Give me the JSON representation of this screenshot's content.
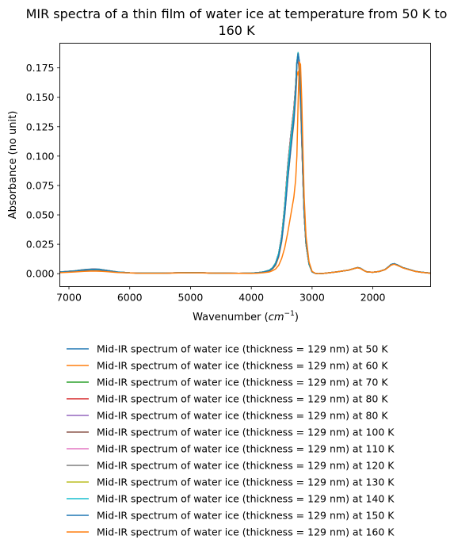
{
  "chart_data": {
    "type": "line",
    "title_lines": [
      "MIR spectra of a thin film of water ice at temperature from 50 K to",
      "160 K"
    ],
    "xlabel_text": "Wavenumber (",
    "xlabel_math_base": "cm",
    "xlabel_math_exp": "−1",
    "xlabel_close": ")",
    "ylabel": "Absorbance (no unit)",
    "xlim": [
      7150,
      1050
    ],
    "ylim": [
      -0.011,
      0.196
    ],
    "x_reversed": true,
    "xticks": [
      7000,
      6000,
      5000,
      4000,
      3000,
      2000
    ],
    "xtick_labels": [
      "7000",
      "6000",
      "5000",
      "4000",
      "3000",
      "2000"
    ],
    "yticks": [
      0.0,
      0.025,
      0.05,
      0.075,
      0.1,
      0.125,
      0.15,
      0.175
    ],
    "ytick_labels": [
      "0.000",
      "0.025",
      "0.050",
      "0.075",
      "0.100",
      "0.125",
      "0.150",
      "0.175"
    ],
    "grid": false,
    "legend_location": "below plot",
    "x": [
      7150,
      6900,
      6750,
      6600,
      6500,
      6400,
      6200,
      6000,
      5800,
      5500,
      5200,
      5000,
      4800,
      4600,
      4400,
      4200,
      4000,
      3900,
      3800,
      3700,
      3650,
      3600,
      3550,
      3500,
      3450,
      3400,
      3350,
      3300,
      3270,
      3250,
      3230,
      3210,
      3190,
      3170,
      3150,
      3130,
      3100,
      3050,
      3000,
      2950,
      2900,
      2800,
      2600,
      2400,
      2300,
      2250,
      2200,
      2150,
      2100,
      2000,
      1900,
      1800,
      1750,
      1700,
      1650,
      1600,
      1500,
      1400,
      1300,
      1200,
      1100,
      1050
    ],
    "series": [
      {
        "name": "Mid-IR spectrum of water ice (thickness = 129 nm) at 50 K",
        "color": "#1f77b4",
        "values": [
          0.0015,
          0.0025,
          0.0035,
          0.004,
          0.0038,
          0.003,
          0.0015,
          0.0007,
          0.0005,
          0.0005,
          0.0007,
          0.0008,
          0.0007,
          0.0005,
          0.0004,
          0.0003,
          0.0005,
          0.0008,
          0.0015,
          0.003,
          0.005,
          0.009,
          0.017,
          0.032,
          0.058,
          0.092,
          0.118,
          0.14,
          0.16,
          0.178,
          0.182,
          0.172,
          0.148,
          0.115,
          0.08,
          0.05,
          0.025,
          0.008,
          0.0015,
          0.0003,
          0.0,
          0.0003,
          0.0015,
          0.003,
          0.0045,
          0.0052,
          0.0045,
          0.0028,
          0.0015,
          0.0012,
          0.0018,
          0.0035,
          0.0055,
          0.0078,
          0.0085,
          0.0075,
          0.005,
          0.0035,
          0.002,
          0.0012,
          0.0007,
          0.0004
        ]
      },
      {
        "name": "Mid-IR spectrum of water ice (thickness = 129 nm) at 60 K",
        "color": "#ff7f0e",
        "values": [
          0.001,
          0.002,
          0.0028,
          0.0032,
          0.003,
          0.0025,
          0.0012,
          0.0006,
          0.0004,
          0.0004,
          0.0006,
          0.0007,
          0.0006,
          0.0005,
          0.0004,
          0.0003,
          0.0004,
          0.0007,
          0.0012,
          0.0024,
          0.004,
          0.007,
          0.014,
          0.027,
          0.05,
          0.08,
          0.105,
          0.128,
          0.15,
          0.168,
          0.172,
          0.165,
          0.142,
          0.112,
          0.08,
          0.05,
          0.025,
          0.008,
          0.0015,
          0.0003,
          0.0,
          0.0003,
          0.0015,
          0.003,
          0.0045,
          0.005,
          0.0043,
          0.0027,
          0.0015,
          0.0012,
          0.0018,
          0.0034,
          0.0053,
          0.0075,
          0.0082,
          0.0072,
          0.0048,
          0.0033,
          0.0019,
          0.0011,
          0.0006,
          0.0003
        ]
      },
      {
        "name": "Mid-IR spectrum of water ice (thickness = 129 nm) at 70 K",
        "color": "#2ca02c",
        "values": [
          0.0014,
          0.0024,
          0.0033,
          0.0038,
          0.0036,
          0.0029,
          0.0014,
          0.0007,
          0.0005,
          0.0005,
          0.0007,
          0.0008,
          0.0007,
          0.0005,
          0.0004,
          0.0003,
          0.0005,
          0.0008,
          0.0015,
          0.003,
          0.005,
          0.009,
          0.017,
          0.032,
          0.058,
          0.092,
          0.118,
          0.14,
          0.16,
          0.179,
          0.184,
          0.174,
          0.15,
          0.116,
          0.08,
          0.05,
          0.025,
          0.008,
          0.0015,
          0.0003,
          0.0,
          0.0003,
          0.0015,
          0.003,
          0.0045,
          0.0052,
          0.0045,
          0.0028,
          0.0015,
          0.0012,
          0.0018,
          0.0035,
          0.0055,
          0.0078,
          0.0085,
          0.0075,
          0.005,
          0.0035,
          0.002,
          0.0012,
          0.0007,
          0.0004
        ]
      },
      {
        "name": "Mid-IR spectrum of water ice (thickness = 129 nm) at 80 K",
        "color": "#d62728",
        "values": [
          0.0014,
          0.0024,
          0.0033,
          0.0038,
          0.0036,
          0.0029,
          0.0014,
          0.0007,
          0.0005,
          0.0005,
          0.0007,
          0.0008,
          0.0007,
          0.0005,
          0.0004,
          0.0003,
          0.0005,
          0.0008,
          0.0015,
          0.003,
          0.005,
          0.009,
          0.017,
          0.032,
          0.058,
          0.092,
          0.118,
          0.14,
          0.16,
          0.18,
          0.185,
          0.175,
          0.15,
          0.116,
          0.08,
          0.05,
          0.025,
          0.008,
          0.0015,
          0.0003,
          0.0,
          0.0003,
          0.0015,
          0.003,
          0.0045,
          0.0052,
          0.0045,
          0.0028,
          0.0015,
          0.0012,
          0.0018,
          0.0035,
          0.0055,
          0.0078,
          0.0085,
          0.0075,
          0.005,
          0.0035,
          0.002,
          0.0012,
          0.0007,
          0.0004
        ]
      },
      {
        "name": "Mid-IR spectrum of water ice (thickness = 129 nm) at 80 K",
        "color": "#9467bd",
        "values": [
          0.0014,
          0.0024,
          0.0033,
          0.0038,
          0.0036,
          0.0029,
          0.0014,
          0.0007,
          0.0005,
          0.0005,
          0.0007,
          0.0008,
          0.0007,
          0.0005,
          0.0004,
          0.0003,
          0.0005,
          0.0008,
          0.0015,
          0.003,
          0.005,
          0.009,
          0.017,
          0.032,
          0.058,
          0.092,
          0.118,
          0.14,
          0.16,
          0.18,
          0.185,
          0.175,
          0.15,
          0.116,
          0.08,
          0.05,
          0.025,
          0.008,
          0.0015,
          0.0003,
          0.0,
          0.0003,
          0.0015,
          0.003,
          0.0045,
          0.0052,
          0.0045,
          0.0028,
          0.0015,
          0.0012,
          0.0018,
          0.0035,
          0.0055,
          0.0078,
          0.0085,
          0.0075,
          0.005,
          0.0035,
          0.002,
          0.0012,
          0.0007,
          0.0004
        ]
      },
      {
        "name": "Mid-IR spectrum of water ice (thickness = 129 nm) at 100 K",
        "color": "#8c564b",
        "values": [
          0.0013,
          0.0023,
          0.0032,
          0.0037,
          0.0035,
          0.0028,
          0.0014,
          0.0007,
          0.0005,
          0.0005,
          0.0007,
          0.0008,
          0.0007,
          0.0005,
          0.0004,
          0.0003,
          0.0005,
          0.0008,
          0.0015,
          0.003,
          0.005,
          0.009,
          0.017,
          0.032,
          0.058,
          0.09,
          0.116,
          0.138,
          0.158,
          0.179,
          0.186,
          0.177,
          0.152,
          0.118,
          0.082,
          0.051,
          0.026,
          0.008,
          0.0015,
          0.0003,
          0.0,
          0.0003,
          0.0015,
          0.003,
          0.0045,
          0.0052,
          0.0045,
          0.0028,
          0.0015,
          0.0012,
          0.0018,
          0.0035,
          0.0055,
          0.0078,
          0.0085,
          0.0075,
          0.005,
          0.0035,
          0.002,
          0.0012,
          0.0007,
          0.0004
        ]
      },
      {
        "name": "Mid-IR spectrum of water ice (thickness = 129 nm) at 110 K",
        "color": "#e377c2",
        "values": [
          0.0013,
          0.0023,
          0.0032,
          0.0037,
          0.0035,
          0.0028,
          0.0014,
          0.0007,
          0.0005,
          0.0005,
          0.0007,
          0.0008,
          0.0007,
          0.0005,
          0.0004,
          0.0003,
          0.0005,
          0.0008,
          0.0015,
          0.003,
          0.005,
          0.009,
          0.017,
          0.032,
          0.058,
          0.09,
          0.116,
          0.138,
          0.158,
          0.18,
          0.187,
          0.178,
          0.153,
          0.118,
          0.082,
          0.051,
          0.026,
          0.008,
          0.0015,
          0.0003,
          0.0,
          0.0003,
          0.0015,
          0.003,
          0.0045,
          0.0052,
          0.0045,
          0.0028,
          0.0015,
          0.0012,
          0.0018,
          0.0035,
          0.0055,
          0.0078,
          0.0085,
          0.0075,
          0.005,
          0.0035,
          0.002,
          0.0012,
          0.0007,
          0.0004
        ]
      },
      {
        "name": "Mid-IR spectrum of water ice (thickness = 129 nm) at 120 K",
        "color": "#7f7f7f",
        "values": [
          0.0013,
          0.0023,
          0.0032,
          0.0037,
          0.0035,
          0.0028,
          0.0014,
          0.0007,
          0.0005,
          0.0005,
          0.0007,
          0.0008,
          0.0007,
          0.0005,
          0.0004,
          0.0003,
          0.0005,
          0.0008,
          0.0015,
          0.003,
          0.005,
          0.009,
          0.017,
          0.031,
          0.057,
          0.089,
          0.115,
          0.137,
          0.157,
          0.18,
          0.188,
          0.179,
          0.154,
          0.12,
          0.083,
          0.052,
          0.026,
          0.008,
          0.0015,
          0.0003,
          0.0,
          0.0003,
          0.0015,
          0.003,
          0.0045,
          0.0052,
          0.0045,
          0.0028,
          0.0015,
          0.0012,
          0.0018,
          0.0035,
          0.0055,
          0.0078,
          0.0085,
          0.0075,
          0.005,
          0.0035,
          0.002,
          0.0012,
          0.0007,
          0.0004
        ]
      },
      {
        "name": "Mid-IR spectrum of water ice (thickness = 129 nm) at 130 K",
        "color": "#bcbd22",
        "values": [
          0.0013,
          0.0023,
          0.0032,
          0.0037,
          0.0035,
          0.0028,
          0.0014,
          0.0007,
          0.0005,
          0.0005,
          0.0007,
          0.0008,
          0.0007,
          0.0005,
          0.0004,
          0.0003,
          0.0005,
          0.0008,
          0.0015,
          0.003,
          0.005,
          0.009,
          0.017,
          0.031,
          0.057,
          0.089,
          0.115,
          0.137,
          0.157,
          0.18,
          0.188,
          0.18,
          0.155,
          0.121,
          0.084,
          0.052,
          0.026,
          0.008,
          0.0015,
          0.0003,
          0.0,
          0.0003,
          0.0015,
          0.003,
          0.0045,
          0.0052,
          0.0045,
          0.0028,
          0.0015,
          0.0012,
          0.0018,
          0.0035,
          0.0055,
          0.0078,
          0.0085,
          0.0075,
          0.005,
          0.0035,
          0.002,
          0.0012,
          0.0007,
          0.0004
        ]
      },
      {
        "name": "Mid-IR spectrum of water ice (thickness = 129 nm) at 140 K",
        "color": "#17becf",
        "values": [
          0.0013,
          0.0023,
          0.0032,
          0.0037,
          0.0035,
          0.0028,
          0.0014,
          0.0007,
          0.0005,
          0.0005,
          0.0007,
          0.0008,
          0.0007,
          0.0005,
          0.0004,
          0.0003,
          0.0005,
          0.0008,
          0.0015,
          0.003,
          0.005,
          0.009,
          0.017,
          0.031,
          0.056,
          0.088,
          0.114,
          0.136,
          0.156,
          0.18,
          0.188,
          0.18,
          0.156,
          0.122,
          0.085,
          0.053,
          0.027,
          0.008,
          0.0015,
          0.0003,
          0.0,
          0.0003,
          0.0015,
          0.003,
          0.0045,
          0.0052,
          0.0045,
          0.0028,
          0.0015,
          0.0012,
          0.0018,
          0.0035,
          0.0055,
          0.0078,
          0.0085,
          0.0075,
          0.005,
          0.0035,
          0.002,
          0.0012,
          0.0007,
          0.0004
        ]
      },
      {
        "name": "Mid-IR spectrum of water ice (thickness = 129 nm) at 150 K",
        "color": "#1f77b4",
        "values": [
          0.0012,
          0.0022,
          0.003,
          0.0035,
          0.0033,
          0.0027,
          0.0013,
          0.0007,
          0.0005,
          0.0005,
          0.0007,
          0.0008,
          0.0007,
          0.0005,
          0.0004,
          0.0003,
          0.0004,
          0.0007,
          0.0013,
          0.0026,
          0.0044,
          0.008,
          0.015,
          0.028,
          0.05,
          0.08,
          0.106,
          0.13,
          0.152,
          0.178,
          0.187,
          0.181,
          0.158,
          0.124,
          0.087,
          0.055,
          0.028,
          0.009,
          0.0016,
          0.0003,
          0.0,
          0.0003,
          0.0015,
          0.003,
          0.0045,
          0.0052,
          0.0045,
          0.0028,
          0.0015,
          0.0012,
          0.0018,
          0.0035,
          0.0055,
          0.0078,
          0.0085,
          0.0075,
          0.005,
          0.0035,
          0.002,
          0.0012,
          0.0007,
          0.0004
        ]
      },
      {
        "name": "Mid-IR spectrum of water ice (thickness = 129 nm) at 160 K",
        "color": "#ff7f0e",
        "values": [
          0.0008,
          0.0015,
          0.002,
          0.0022,
          0.0021,
          0.0018,
          0.001,
          0.0006,
          0.0004,
          0.0004,
          0.0006,
          0.0007,
          0.0006,
          0.0005,
          0.0004,
          0.0003,
          0.0002,
          0.0004,
          0.0008,
          0.0015,
          0.0025,
          0.004,
          0.007,
          0.013,
          0.022,
          0.035,
          0.05,
          0.065,
          0.08,
          0.1,
          0.145,
          0.18,
          0.178,
          0.148,
          0.105,
          0.065,
          0.032,
          0.01,
          0.002,
          0.0004,
          0.0,
          0.0003,
          0.0015,
          0.003,
          0.0045,
          0.005,
          0.0043,
          0.0027,
          0.0015,
          0.0012,
          0.0018,
          0.0034,
          0.0052,
          0.0072,
          0.008,
          0.0071,
          0.0048,
          0.0033,
          0.0019,
          0.0011,
          0.0006,
          0.0003
        ]
      }
    ]
  }
}
